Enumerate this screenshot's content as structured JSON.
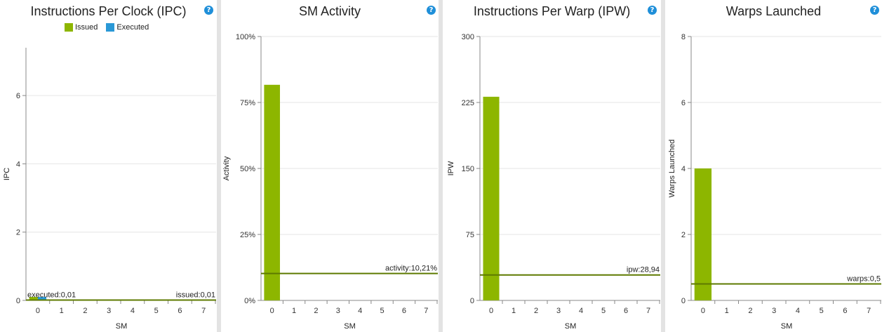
{
  "chart_data": [
    {
      "type": "bar",
      "title": "Instructions Per Clock (IPC)",
      "xlabel": "SM",
      "ylabel": "IPC",
      "categories": [
        "0",
        "1",
        "2",
        "3",
        "4",
        "5",
        "6",
        "7"
      ],
      "ylim": [
        0,
        7.4
      ],
      "yticks": [
        {
          "value": 0,
          "label": "0"
        },
        {
          "value": 2,
          "label": "2"
        },
        {
          "value": 4,
          "label": "4"
        },
        {
          "value": 6,
          "label": "6"
        }
      ],
      "series": [
        {
          "name": "Issued",
          "color": "#8db600",
          "values": [
            0.1,
            0,
            0,
            0,
            0,
            0,
            0,
            0
          ]
        },
        {
          "name": "Executed",
          "color": "#2a98d6",
          "values": [
            0.1,
            0,
            0,
            0,
            0,
            0,
            0,
            0
          ]
        }
      ],
      "legend": {
        "position": "top",
        "items": [
          "Issued",
          "Executed"
        ]
      },
      "reference_lines": [
        {
          "value": 0.01,
          "label": "executed:0,01",
          "color": "#2a98d6",
          "label_side": "left"
        },
        {
          "value": 0.01,
          "label": "issued:0,01",
          "color": "#5e7a00",
          "label_side": "right"
        }
      ],
      "grid": true
    },
    {
      "type": "bar",
      "title": "SM Activity",
      "xlabel": "SM",
      "ylabel": "Activity",
      "categories": [
        "0",
        "1",
        "2",
        "3",
        "4",
        "5",
        "6",
        "7"
      ],
      "ylim": [
        0,
        100
      ],
      "yticks": [
        {
          "value": 0,
          "label": "0%"
        },
        {
          "value": 25,
          "label": "25%"
        },
        {
          "value": 50,
          "label": "50%"
        },
        {
          "value": 75,
          "label": "75%"
        },
        {
          "value": 100,
          "label": "100%"
        }
      ],
      "series": [
        {
          "color": "#8db600",
          "values": [
            81.7,
            0,
            0,
            0,
            0,
            0,
            0,
            0
          ]
        }
      ],
      "reference_lines": [
        {
          "value": 10.21,
          "label": "activity:10,21%",
          "color": "#5e7a00",
          "label_side": "right"
        }
      ],
      "grid": true
    },
    {
      "type": "bar",
      "title": "Instructions Per Warp (IPW)",
      "xlabel": "SM",
      "ylabel": "IPW",
      "categories": [
        "0",
        "1",
        "2",
        "3",
        "4",
        "5",
        "6",
        "7"
      ],
      "ylim": [
        0,
        300
      ],
      "yticks": [
        {
          "value": 0,
          "label": "0"
        },
        {
          "value": 75,
          "label": "75"
        },
        {
          "value": 150,
          "label": "150"
        },
        {
          "value": 225,
          "label": "225"
        },
        {
          "value": 300,
          "label": "300"
        }
      ],
      "series": [
        {
          "color": "#8db600",
          "values": [
            231.5,
            0,
            0,
            0,
            0,
            0,
            0,
            0
          ]
        }
      ],
      "reference_lines": [
        {
          "value": 28.94,
          "label": "ipw:28,94",
          "color": "#5e7a00",
          "label_side": "right"
        }
      ],
      "grid": true
    },
    {
      "type": "bar",
      "title": "Warps Launched",
      "xlabel": "SM",
      "ylabel": "Warps Launched",
      "categories": [
        "0",
        "1",
        "2",
        "3",
        "4",
        "5",
        "6",
        "7"
      ],
      "ylim": [
        0,
        8
      ],
      "yticks": [
        {
          "value": 0,
          "label": "0"
        },
        {
          "value": 2,
          "label": "2"
        },
        {
          "value": 4,
          "label": "4"
        },
        {
          "value": 6,
          "label": "6"
        },
        {
          "value": 8,
          "label": "8"
        }
      ],
      "series": [
        {
          "color": "#8db600",
          "values": [
            4,
            0,
            0,
            0,
            0,
            0,
            0,
            0
          ]
        }
      ],
      "reference_lines": [
        {
          "value": 0.5,
          "label": "warps:0,5",
          "color": "#5e7a00",
          "label_side": "right"
        }
      ],
      "grid": true
    }
  ],
  "help_icon": {
    "glyph": "?",
    "icon": "help-icon"
  }
}
